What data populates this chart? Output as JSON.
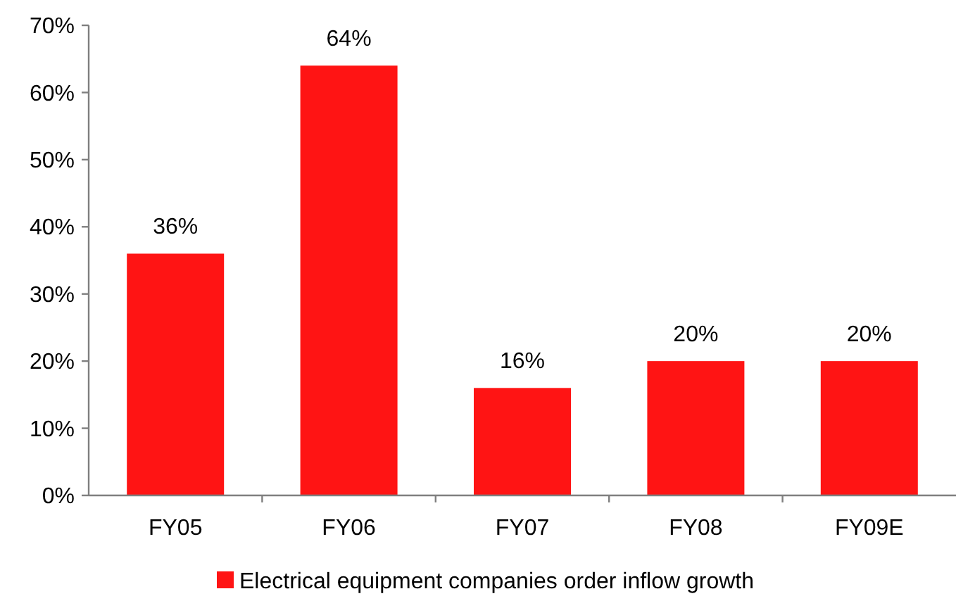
{
  "chart_data": {
    "type": "bar",
    "categories": [
      "FY05",
      "FY06",
      "FY07",
      "FY08",
      "FY09E"
    ],
    "series": [
      {
        "name": "Electrical equipment companies order inflow growth",
        "color": "#ff1414",
        "values": [
          36,
          64,
          16,
          20,
          20
        ],
        "value_labels": [
          "36%",
          "64%",
          "16%",
          "20%",
          "20%"
        ]
      }
    ],
    "ylim": [
      0,
      70
    ],
    "yticks": [
      {
        "value": 0,
        "label": "0%"
      },
      {
        "value": 10,
        "label": "10%"
      },
      {
        "value": 20,
        "label": "20%"
      },
      {
        "value": 30,
        "label": "30%"
      },
      {
        "value": 40,
        "label": "40%"
      },
      {
        "value": 50,
        "label": "50%"
      },
      {
        "value": 60,
        "label": "60%"
      },
      {
        "value": 70,
        "label": "70%"
      }
    ],
    "legend": "bottom"
  }
}
